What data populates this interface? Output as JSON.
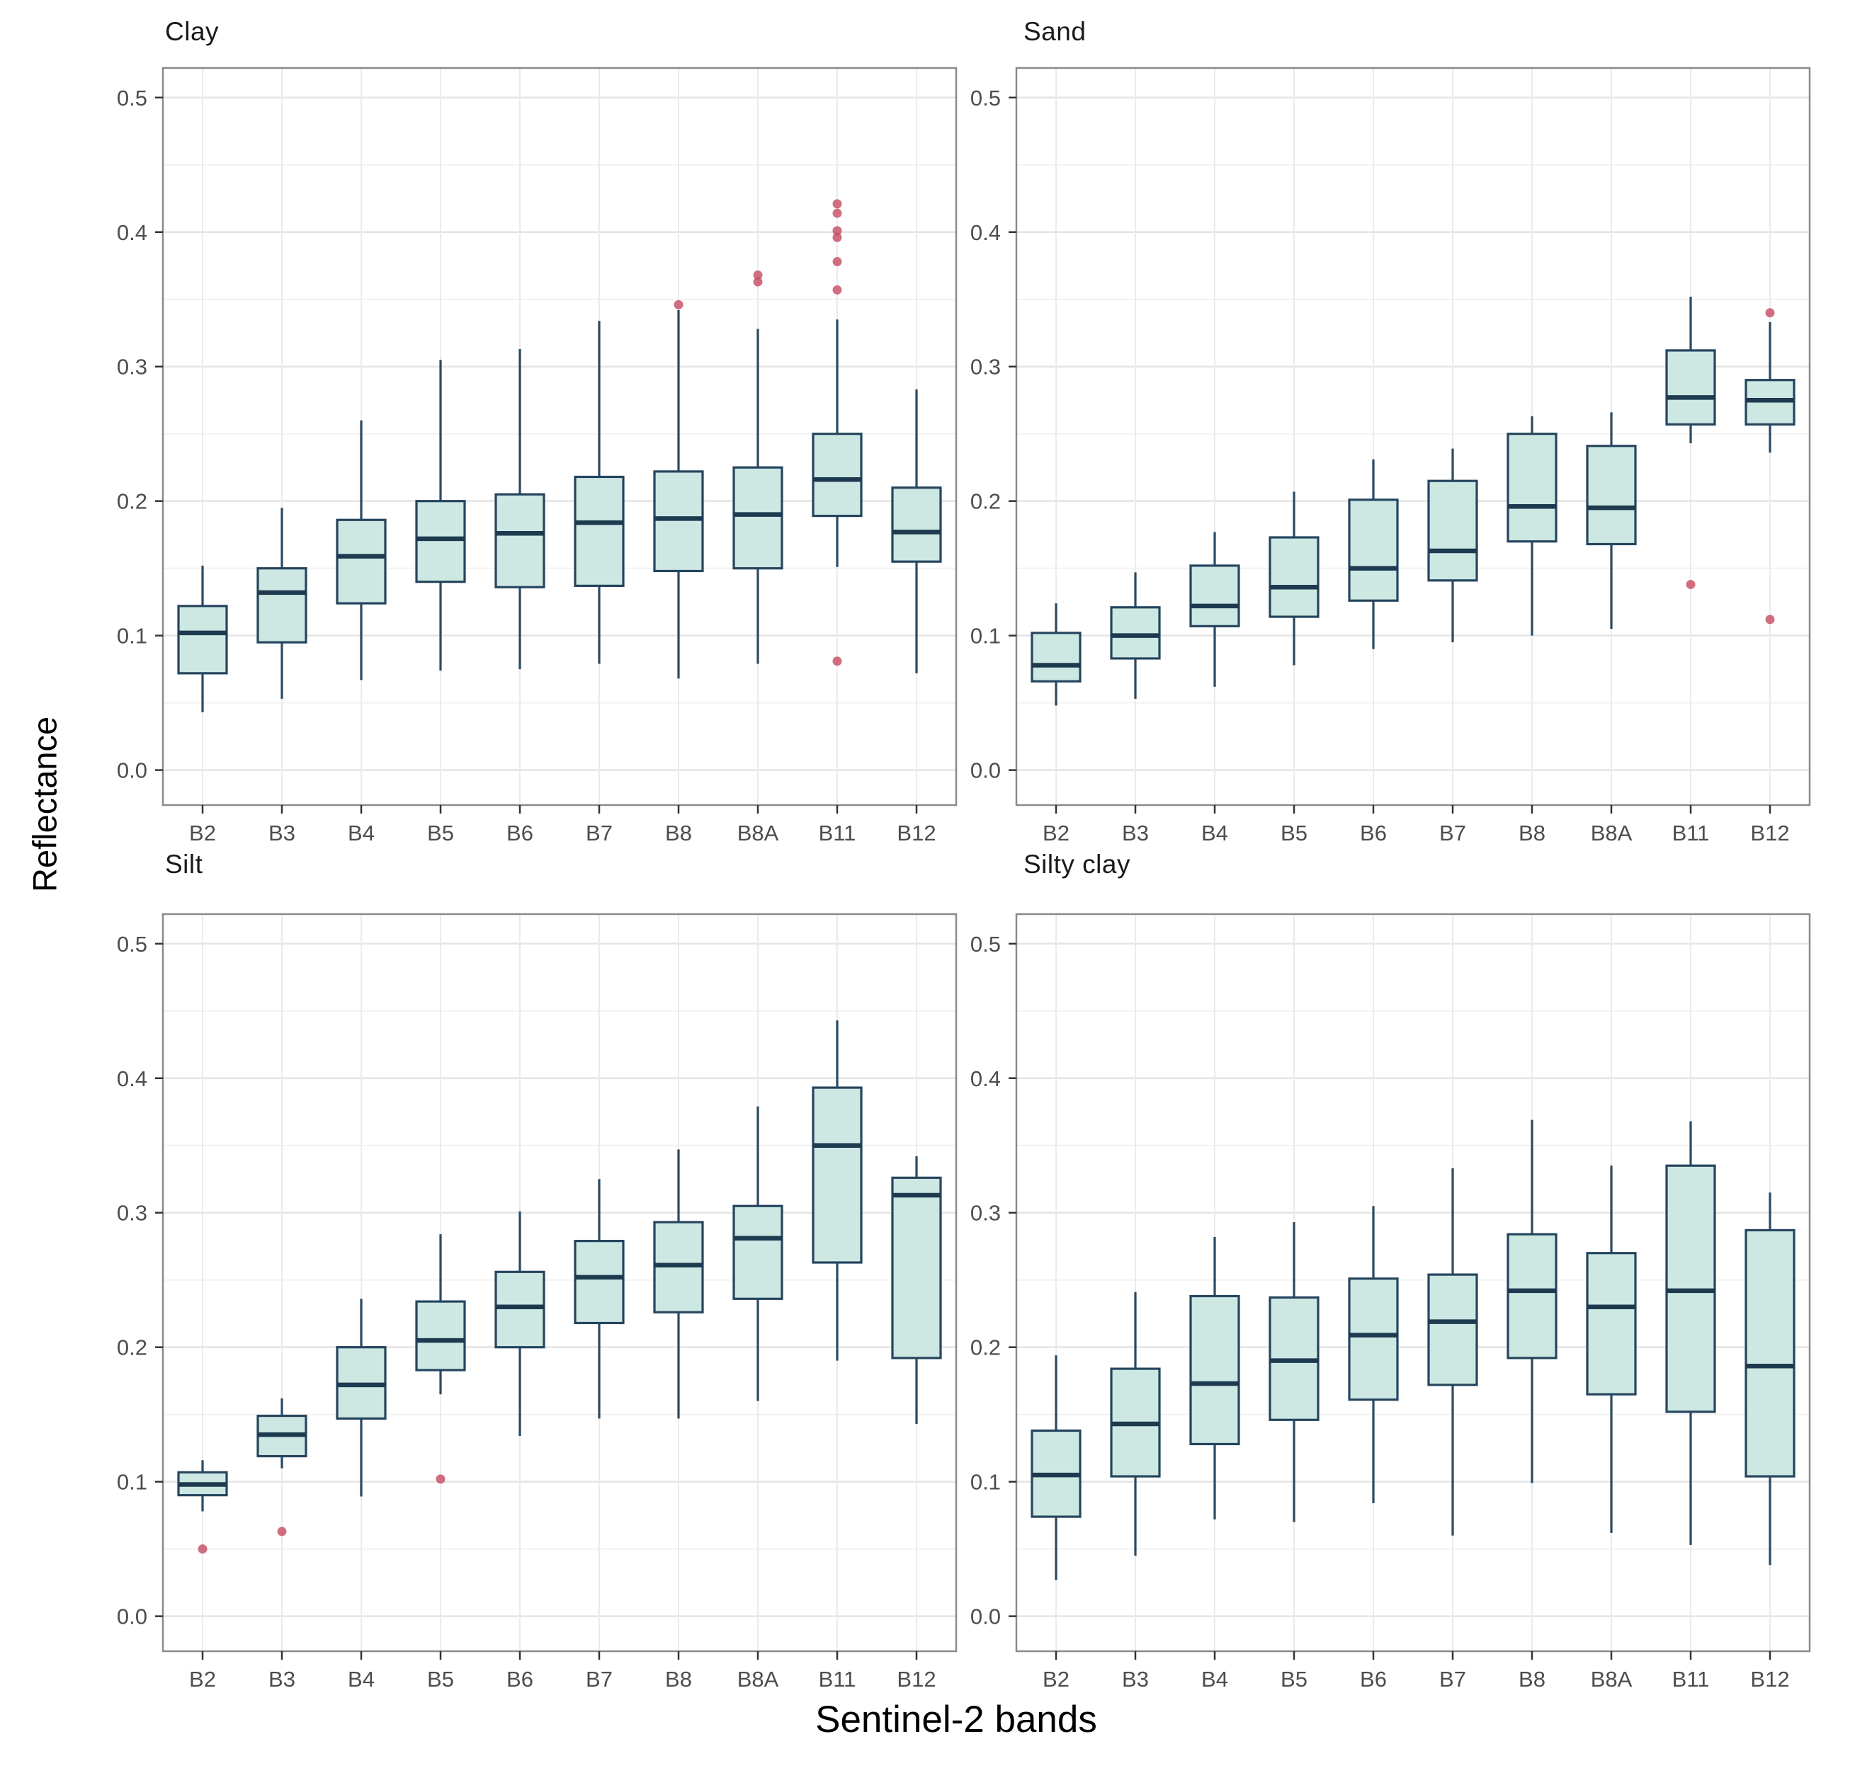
{
  "figure": {
    "ylabel": "Reflectance",
    "xlabel": "Sentinel-2 bands"
  },
  "chart_data": {
    "type": "boxplot",
    "layout": "2x2-grid",
    "categories": [
      "B2",
      "B3",
      "B4",
      "B5",
      "B6",
      "B7",
      "B8",
      "B8A",
      "B11",
      "B12"
    ],
    "y_ticks": [
      0.0,
      0.1,
      0.2,
      0.3,
      0.4,
      0.5
    ],
    "y_minor_ticks": [
      0.05,
      0.15,
      0.25,
      0.35,
      0.45
    ],
    "ylim": [
      -0.026,
      0.522
    ],
    "grid": "major and minor horizontal gridlines, vertical gridline per band",
    "legend": "none",
    "xlabel": "Sentinel-2 bands",
    "ylabel": "Reflectance",
    "colors": {
      "box_fill": "#cde8e2",
      "box_stroke": "#25455e",
      "median_stroke": "#1d3a50",
      "whisker_stroke": "#2a4a62",
      "outlier_fill": "#c64a63",
      "grid_major": "#e4e4e4",
      "grid_minor": "#f2f2f2",
      "grid_vertical": "#ebebeb",
      "panel_border": "#8a8a8a",
      "tick_mark": "#333333",
      "tick_label": "#4d4d4d",
      "title_text": "#1a1a1a"
    },
    "panels": [
      {
        "title": "Clay",
        "boxes": [
          {
            "band": "B2",
            "low": 0.043,
            "q1": 0.072,
            "median": 0.102,
            "q3": 0.122,
            "high": 0.152,
            "outliers": []
          },
          {
            "band": "B3",
            "low": 0.053,
            "q1": 0.095,
            "median": 0.132,
            "q3": 0.15,
            "high": 0.195,
            "outliers": []
          },
          {
            "band": "B4",
            "low": 0.067,
            "q1": 0.124,
            "median": 0.159,
            "q3": 0.186,
            "high": 0.26,
            "outliers": []
          },
          {
            "band": "B5",
            "low": 0.074,
            "q1": 0.14,
            "median": 0.172,
            "q3": 0.2,
            "high": 0.305,
            "outliers": []
          },
          {
            "band": "B6",
            "low": 0.075,
            "q1": 0.136,
            "median": 0.176,
            "q3": 0.205,
            "high": 0.313,
            "outliers": []
          },
          {
            "band": "B7",
            "low": 0.079,
            "q1": 0.137,
            "median": 0.184,
            "q3": 0.218,
            "high": 0.334,
            "outliers": []
          },
          {
            "band": "B8",
            "low": 0.068,
            "q1": 0.148,
            "median": 0.187,
            "q3": 0.222,
            "high": 0.342,
            "outliers": [
              0.346
            ]
          },
          {
            "band": "B8A",
            "low": 0.079,
            "q1": 0.15,
            "median": 0.19,
            "q3": 0.225,
            "high": 0.328,
            "outliers": [
              0.363,
              0.368
            ]
          },
          {
            "band": "B11",
            "low": 0.151,
            "q1": 0.189,
            "median": 0.216,
            "q3": 0.25,
            "high": 0.335,
            "outliers": [
              0.357,
              0.378,
              0.396,
              0.401,
              0.414,
              0.421,
              0.081
            ]
          },
          {
            "band": "B12",
            "low": 0.072,
            "q1": 0.155,
            "median": 0.177,
            "q3": 0.21,
            "high": 0.283,
            "outliers": []
          }
        ]
      },
      {
        "title": "Sand",
        "boxes": [
          {
            "band": "B2",
            "low": 0.048,
            "q1": 0.066,
            "median": 0.078,
            "q3": 0.102,
            "high": 0.124,
            "outliers": []
          },
          {
            "band": "B3",
            "low": 0.053,
            "q1": 0.083,
            "median": 0.1,
            "q3": 0.121,
            "high": 0.147,
            "outliers": []
          },
          {
            "band": "B4",
            "low": 0.062,
            "q1": 0.107,
            "median": 0.122,
            "q3": 0.152,
            "high": 0.177,
            "outliers": []
          },
          {
            "band": "B5",
            "low": 0.078,
            "q1": 0.114,
            "median": 0.136,
            "q3": 0.173,
            "high": 0.207,
            "outliers": []
          },
          {
            "band": "B6",
            "low": 0.09,
            "q1": 0.126,
            "median": 0.15,
            "q3": 0.201,
            "high": 0.231,
            "outliers": []
          },
          {
            "band": "B7",
            "low": 0.095,
            "q1": 0.141,
            "median": 0.163,
            "q3": 0.215,
            "high": 0.239,
            "outliers": []
          },
          {
            "band": "B8",
            "low": 0.1,
            "q1": 0.17,
            "median": 0.196,
            "q3": 0.25,
            "high": 0.263,
            "outliers": []
          },
          {
            "band": "B8A",
            "low": 0.105,
            "q1": 0.168,
            "median": 0.195,
            "q3": 0.241,
            "high": 0.266,
            "outliers": []
          },
          {
            "band": "B11",
            "low": 0.243,
            "q1": 0.257,
            "median": 0.277,
            "q3": 0.312,
            "high": 0.352,
            "outliers": [
              0.138
            ]
          },
          {
            "band": "B12",
            "low": 0.236,
            "q1": 0.257,
            "median": 0.275,
            "q3": 0.29,
            "high": 0.333,
            "outliers": [
              0.34,
              0.112
            ]
          }
        ]
      },
      {
        "title": "Silt",
        "boxes": [
          {
            "band": "B2",
            "low": 0.078,
            "q1": 0.09,
            "median": 0.098,
            "q3": 0.107,
            "high": 0.116,
            "outliers": [
              0.05
            ]
          },
          {
            "band": "B3",
            "low": 0.11,
            "q1": 0.119,
            "median": 0.135,
            "q3": 0.149,
            "high": 0.162,
            "outliers": [
              0.063
            ]
          },
          {
            "band": "B4",
            "low": 0.089,
            "q1": 0.147,
            "median": 0.172,
            "q3": 0.2,
            "high": 0.236,
            "outliers": []
          },
          {
            "band": "B5",
            "low": 0.165,
            "q1": 0.183,
            "median": 0.205,
            "q3": 0.234,
            "high": 0.284,
            "outliers": [
              0.102
            ]
          },
          {
            "band": "B6",
            "low": 0.134,
            "q1": 0.2,
            "median": 0.23,
            "q3": 0.256,
            "high": 0.301,
            "outliers": []
          },
          {
            "band": "B7",
            "low": 0.147,
            "q1": 0.218,
            "median": 0.252,
            "q3": 0.279,
            "high": 0.325,
            "outliers": []
          },
          {
            "band": "B8",
            "low": 0.147,
            "q1": 0.226,
            "median": 0.261,
            "q3": 0.293,
            "high": 0.347,
            "outliers": []
          },
          {
            "band": "B8A",
            "low": 0.16,
            "q1": 0.236,
            "median": 0.281,
            "q3": 0.305,
            "high": 0.379,
            "outliers": []
          },
          {
            "band": "B11",
            "low": 0.19,
            "q1": 0.263,
            "median": 0.35,
            "q3": 0.393,
            "high": 0.443,
            "outliers": []
          },
          {
            "band": "B12",
            "low": 0.143,
            "q1": 0.192,
            "median": 0.313,
            "q3": 0.326,
            "high": 0.342,
            "outliers": []
          }
        ]
      },
      {
        "title": "Silty clay",
        "boxes": [
          {
            "band": "B2",
            "low": 0.027,
            "q1": 0.074,
            "median": 0.105,
            "q3": 0.138,
            "high": 0.194,
            "outliers": []
          },
          {
            "band": "B3",
            "low": 0.045,
            "q1": 0.104,
            "median": 0.143,
            "q3": 0.184,
            "high": 0.241,
            "outliers": []
          },
          {
            "band": "B4",
            "low": 0.072,
            "q1": 0.128,
            "median": 0.173,
            "q3": 0.238,
            "high": 0.282,
            "outliers": []
          },
          {
            "band": "B5",
            "low": 0.07,
            "q1": 0.146,
            "median": 0.19,
            "q3": 0.237,
            "high": 0.293,
            "outliers": []
          },
          {
            "band": "B6",
            "low": 0.084,
            "q1": 0.161,
            "median": 0.209,
            "q3": 0.251,
            "high": 0.305,
            "outliers": []
          },
          {
            "band": "B7",
            "low": 0.06,
            "q1": 0.172,
            "median": 0.219,
            "q3": 0.254,
            "high": 0.333,
            "outliers": []
          },
          {
            "band": "B8",
            "low": 0.099,
            "q1": 0.192,
            "median": 0.242,
            "q3": 0.284,
            "high": 0.369,
            "outliers": []
          },
          {
            "band": "B8A",
            "low": 0.062,
            "q1": 0.165,
            "median": 0.23,
            "q3": 0.27,
            "high": 0.335,
            "outliers": []
          },
          {
            "band": "B11",
            "low": 0.053,
            "q1": 0.152,
            "median": 0.242,
            "q3": 0.335,
            "high": 0.368,
            "outliers": []
          },
          {
            "band": "B12",
            "low": 0.038,
            "q1": 0.104,
            "median": 0.186,
            "q3": 0.287,
            "high": 0.315,
            "outliers": []
          }
        ]
      }
    ]
  }
}
